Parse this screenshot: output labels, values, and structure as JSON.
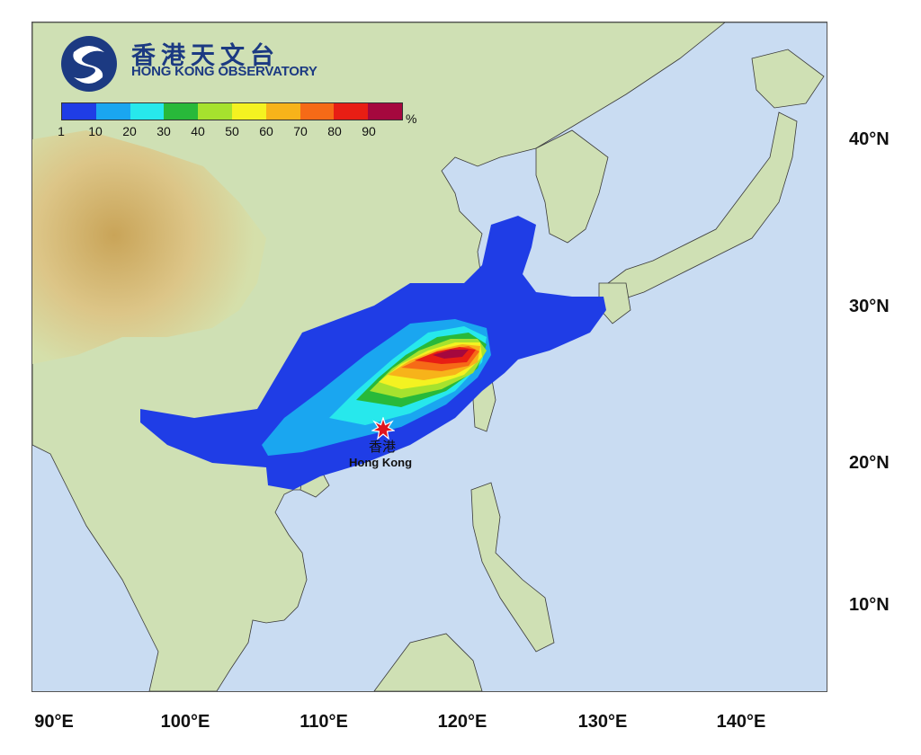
{
  "header": {
    "title_zh": "香港天文台",
    "title_en": "HONG KONG OBSERVATORY"
  },
  "legend": {
    "unit": "%",
    "ticks": [
      "1",
      "10",
      "20",
      "30",
      "40",
      "50",
      "60",
      "70",
      "80",
      "90"
    ],
    "colors": [
      "#1f3de6",
      "#1aa6f0",
      "#27e8ec",
      "#28b93a",
      "#a6e22e",
      "#f4f221",
      "#f7b31a",
      "#f66a17",
      "#e81e14",
      "#a5083e"
    ]
  },
  "axes": {
    "latitude_labels": [
      "40°N",
      "30°N",
      "20°N",
      "10°N"
    ],
    "longitude_labels": [
      "90°E",
      "100°E",
      "110°E",
      "120°E",
      "130°E",
      "140°E"
    ]
  },
  "marker": {
    "label_zh": "香港",
    "label_en": "Hong Kong",
    "icon": "red-star-icon"
  },
  "colors": {
    "sea": "#c9dcf2",
    "land": "#cfe0b4",
    "highland": "#d7b56a",
    "logo_blue": "#1c3a82"
  }
}
